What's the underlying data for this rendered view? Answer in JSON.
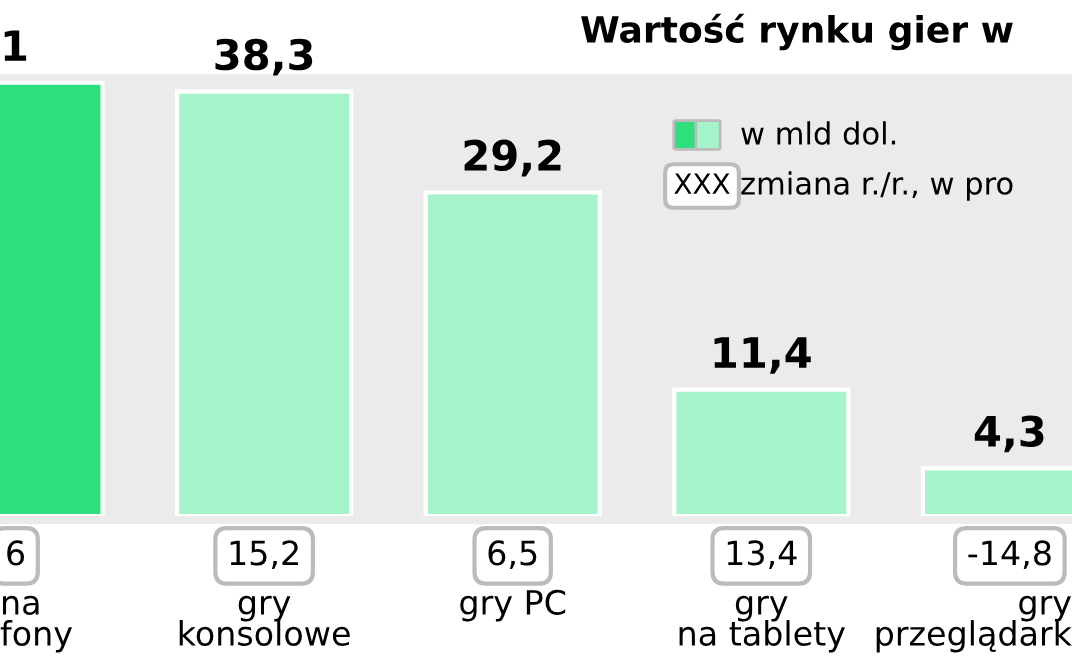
{
  "chart_data": {
    "type": "bar",
    "title": "Wartość rynku gier w",
    "categories": [
      "na\nfony",
      "gry\nkonsolowe",
      "gry PC",
      "gry\nna tablety",
      "gry\nprzeglądark"
    ],
    "series": [
      {
        "name": "w mld dol.",
        "values": [
          39.1,
          38.3,
          29.2,
          11.4,
          4.3
        ],
        "colors": [
          "#2ddf7d",
          "#a4f3c9",
          "#a4f3c9",
          "#a4f3c9",
          "#a4f3c9"
        ],
        "value_labels": [
          null,
          "38,3",
          "29,2",
          "11,4",
          "4,3"
        ]
      }
    ],
    "legend": "top right",
    "annotations": [
      "XXX",
      "zmiana r./r., w pro",
      "6",
      "15,2",
      "6,5",
      "13,4",
      "-14,8",
      "1"
    ]
  }
}
